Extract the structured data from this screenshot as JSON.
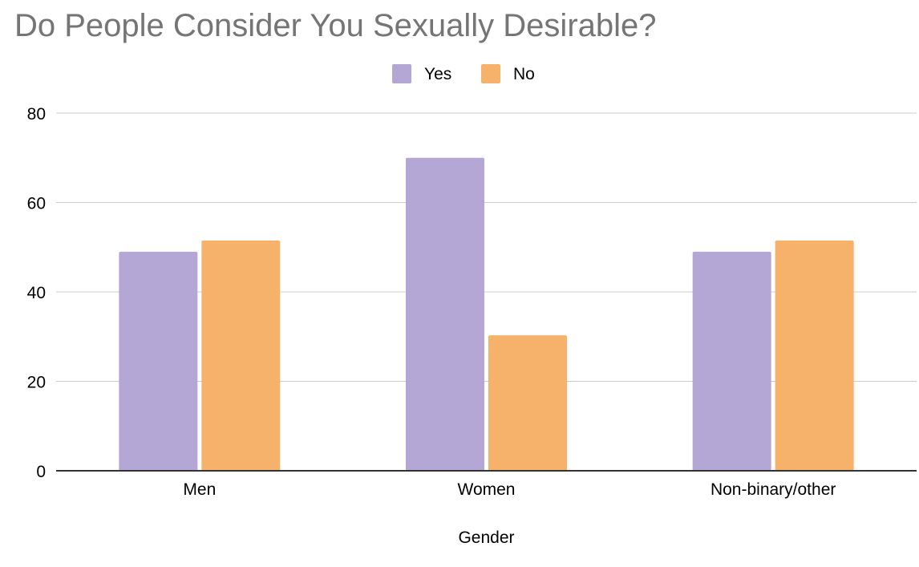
{
  "chart_data": {
    "type": "bar",
    "title": "Do People Consider You Sexually Desirable?",
    "xlabel": "Gender",
    "ylabel": "",
    "categories": [
      "Men",
      "Women",
      "Non-binary/other"
    ],
    "series": [
      {
        "name": "Yes",
        "color": "#b4a7d6",
        "values": [
          49,
          70,
          49
        ]
      },
      {
        "name": "No",
        "color": "#f6b26b",
        "values": [
          51.5,
          30.3,
          51.5
        ]
      }
    ],
    "ylim": [
      0,
      80
    ],
    "yticks": [
      0,
      20,
      40,
      60,
      80
    ],
    "grid": true,
    "legend_position": "top"
  }
}
